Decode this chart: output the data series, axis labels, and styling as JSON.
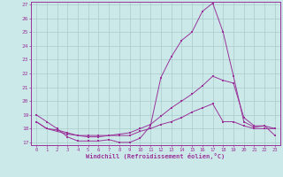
{
  "xlabel": "Windchill (Refroidissement éolien,°C)",
  "xlim": [
    -0.5,
    23.5
  ],
  "ylim": [
    16.8,
    27.2
  ],
  "yticks": [
    17,
    18,
    19,
    20,
    21,
    22,
    23,
    24,
    25,
    26,
    27
  ],
  "xticks": [
    0,
    1,
    2,
    3,
    4,
    5,
    6,
    7,
    8,
    9,
    10,
    11,
    12,
    13,
    14,
    15,
    16,
    17,
    18,
    19,
    20,
    21,
    22,
    23
  ],
  "bg_color": "#cce9e9",
  "line_color": "#993399",
  "grid_color": "#aacccc",
  "line1_x": [
    0,
    1,
    2,
    3,
    4,
    5,
    6,
    7,
    8,
    9,
    10,
    11,
    12,
    13,
    14,
    15,
    16,
    17,
    18,
    19,
    20,
    21,
    22,
    23
  ],
  "line1_y": [
    19.0,
    18.5,
    18.0,
    17.4,
    17.1,
    17.1,
    17.1,
    17.2,
    17.0,
    17.0,
    17.3,
    18.2,
    21.7,
    23.2,
    24.4,
    25.0,
    26.5,
    27.1,
    25.0,
    21.8,
    18.5,
    18.1,
    18.2,
    17.5
  ],
  "line2_x": [
    0,
    1,
    2,
    3,
    4,
    5,
    6,
    7,
    8,
    9,
    10,
    11,
    12,
    13,
    14,
    15,
    16,
    17,
    18,
    19,
    20,
    21,
    22,
    23
  ],
  "line2_y": [
    18.5,
    18.0,
    17.9,
    17.7,
    17.5,
    17.5,
    17.5,
    17.5,
    17.5,
    17.5,
    17.8,
    18.0,
    18.3,
    18.5,
    18.8,
    19.2,
    19.5,
    19.8,
    18.5,
    18.5,
    18.2,
    18.0,
    18.0,
    18.0
  ],
  "line3_x": [
    0,
    1,
    2,
    3,
    4,
    5,
    6,
    7,
    8,
    9,
    10,
    11,
    12,
    13,
    14,
    15,
    16,
    17,
    18,
    19,
    20,
    21,
    22,
    23
  ],
  "line3_y": [
    18.5,
    18.0,
    17.8,
    17.6,
    17.5,
    17.4,
    17.4,
    17.5,
    17.6,
    17.7,
    18.0,
    18.3,
    18.9,
    19.5,
    20.0,
    20.5,
    21.1,
    21.8,
    21.5,
    21.3,
    18.8,
    18.2,
    18.2,
    18.0
  ]
}
